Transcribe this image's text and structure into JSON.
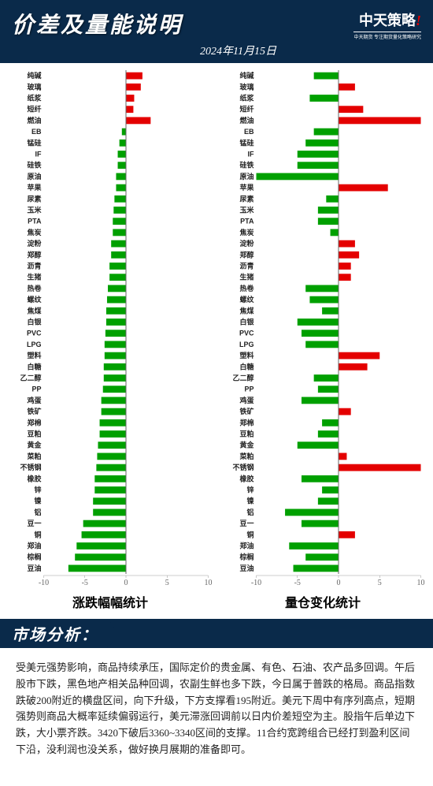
{
  "header": {
    "title": "价差及量能说明",
    "date": "2024年11月15日",
    "logo_text": "中天策略",
    "logo_sub": "中天期货 专注期货量化策略研究"
  },
  "colors": {
    "pos": "#e40000",
    "neg": "#00a000",
    "bg": "#ffffff",
    "header_bg": "#0a2a4a"
  },
  "chart_left": {
    "label": "涨跌幅幅统计",
    "xmin": -10,
    "xmax": 10,
    "xticks": [
      -10,
      -5,
      0,
      5,
      10
    ],
    "categories": [
      "纯碱",
      "玻璃",
      "纸浆",
      "短纤",
      "燃油",
      "EB",
      "锰硅",
      "IF",
      "硅铁",
      "原油",
      "苹果",
      "尿素",
      "玉米",
      "PTA",
      "焦炭",
      "淀粉",
      "郑醇",
      "沥青",
      "生猪",
      "热卷",
      "螺纹",
      "焦煤",
      "白银",
      "PVC",
      "LPG",
      "塑料",
      "白糖",
      "乙二醇",
      "PP",
      "鸡蛋",
      "铁矿",
      "郑棉",
      "豆粕",
      "黄金",
      "菜粕",
      "不锈钢",
      "橡胶",
      "锌",
      "镍",
      "铝",
      "豆一",
      "铜",
      "郑油",
      "棕榈",
      "豆油"
    ],
    "values": [
      2.0,
      1.8,
      1.0,
      0.9,
      3.0,
      -0.5,
      -0.8,
      -1.0,
      -1.0,
      -1.2,
      -1.2,
      -1.4,
      -1.5,
      -1.6,
      -1.6,
      -1.8,
      -1.8,
      -2.0,
      -2.0,
      -2.2,
      -2.3,
      -2.4,
      -2.4,
      -2.5,
      -2.6,
      -2.6,
      -2.7,
      -2.7,
      -2.8,
      -3.0,
      -3.0,
      -3.2,
      -3.2,
      -3.4,
      -3.5,
      -3.6,
      -3.8,
      -3.8,
      -4.0,
      -4.0,
      -5.2,
      -5.4,
      -6.0,
      -6.2,
      -7.0
    ]
  },
  "chart_right": {
    "label": "量仓变化统计",
    "xmin": -10,
    "xmax": 10,
    "xticks": [
      -10,
      -5,
      0,
      5,
      10
    ],
    "categories": [
      "纯碱",
      "玻璃",
      "纸浆",
      "短纤",
      "燃油",
      "EB",
      "锰硅",
      "IF",
      "硅铁",
      "原油",
      "苹果",
      "尿素",
      "玉米",
      "PTA",
      "焦炭",
      "淀粉",
      "郑醇",
      "沥青",
      "生猪",
      "热卷",
      "螺纹",
      "焦煤",
      "白银",
      "PVC",
      "LPG",
      "塑料",
      "白糖",
      "乙二醇",
      "PP",
      "鸡蛋",
      "铁矿",
      "郑棉",
      "豆粕",
      "黄金",
      "菜粕",
      "不锈钢",
      "橡胶",
      "锌",
      "镍",
      "铝",
      "豆一",
      "铜",
      "郑油",
      "棕榈",
      "豆油"
    ],
    "values": [
      -3.0,
      2.0,
      -3.5,
      3.0,
      10.0,
      -3.0,
      -4.0,
      -5.0,
      -5.0,
      -10.0,
      6.0,
      -1.5,
      -2.5,
      -2.5,
      -1.0,
      2.0,
      2.5,
      1.5,
      1.5,
      -4.0,
      -3.5,
      -2.0,
      -5.0,
      -4.5,
      -4.0,
      5.0,
      3.5,
      -3.0,
      -2.5,
      -4.5,
      1.5,
      -2.0,
      -2.5,
      -5.0,
      1.0,
      10.0,
      -4.5,
      -2.0,
      -2.5,
      -6.5,
      -4.5,
      2.0,
      -6.0,
      -4.0,
      -5.5
    ]
  },
  "section_title": "市场分析：",
  "analysis_text": "受美元强势影响，商品持续承压，国际定价的贵金属、有色、石油、农产品多回调。午后股市下跌，黑色地产相关品种回调，农副生鲜也多下跌，今日属于普跌的格局。商品指数跌破200附近的横盘区间，向下升级，下方支撑看195附近。美元下周中有序列高点，短期强势则商品大概率延续偏弱运行，美元滞涨回调前以日内价差短空为主。股指午后单边下跌，大小票齐跌。3420下破后3360~3340区间的支撑。11合约宽跨组合已经打到盈利区间下沿，没利润也没关系，做好换月展期的准备即可。"
}
